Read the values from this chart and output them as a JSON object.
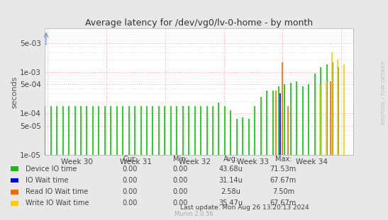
{
  "title": "Average latency for /dev/vg0/lv-0-home - by month",
  "ylabel": "seconds",
  "watermark": "RRDTOOL / TOBI OETIKER",
  "munin_version": "Munin 2.0.56",
  "last_update": "Last update: Mon Aug 26 13:20:13 2024",
  "background_color": "#e8e8e8",
  "plot_bg_color": "#ffffff",
  "grid_color_minor": "#dddddd",
  "grid_color_major": "#ffaaaa",
  "ylim_log_min": 1e-05,
  "ylim_log_max": 0.005,
  "week_labels": [
    "Week 30",
    "Week 31",
    "Week 32",
    "Week 33",
    "Week 34"
  ],
  "legend_items": [
    {
      "label": "Device IO time",
      "color": "#00cc00",
      "cur": "0.00",
      "min": "0.00",
      "avg": "43.68u",
      "max": "71.53m"
    },
    {
      "label": "IO Wait time",
      "color": "#0000ff",
      "cur": "0.00",
      "min": "0.00",
      "avg": "31.14u",
      "max": "67.67m"
    },
    {
      "label": "Read IO Wait time",
      "color": "#ff6600",
      "cur": "0.00",
      "min": "0.00",
      "avg": "2.58u",
      "max": "7.50m"
    },
    {
      "label": "Write IO Wait time",
      "color": "#ffcc00",
      "cur": "0.00",
      "min": "0.00",
      "avg": "35.47u",
      "max": "67.67m"
    }
  ],
  "series_device_io": [
    0.00015,
    0.00015,
    0.00015,
    0.00015,
    0.00015,
    0.00015,
    0.00015,
    0.00015,
    0.00015,
    0.00015,
    0.00015,
    0.00015,
    0.00015,
    0.00015,
    0.00015,
    0.00015,
    0.00015,
    0.00015,
    0.00015,
    0.00015,
    0.00015,
    0.00015,
    0.00015,
    0.00015,
    0.00015,
    0.00015,
    0.00015,
    0.00015,
    0.00015,
    0.00018,
    0.00015,
    0.00012,
    7.5e-05,
    8e-05,
    7.5e-05,
    0.00015,
    0.00025,
    0.00035,
    0.00035,
    0.00045,
    0.0005,
    0.00055,
    0.0006,
    0.00045,
    0.0005,
    0.0009,
    0.0013,
    0.0015,
    0.0017,
    0.0013
  ],
  "series_io_wait": [
    null,
    null,
    null,
    null,
    null,
    null,
    null,
    null,
    null,
    null,
    null,
    null,
    null,
    null,
    null,
    null,
    null,
    null,
    null,
    null,
    null,
    null,
    null,
    null,
    null,
    null,
    null,
    null,
    null,
    null,
    null,
    null,
    null,
    null,
    null,
    null,
    null,
    null,
    null,
    0.0003,
    null,
    null,
    null,
    null,
    null,
    null,
    null,
    null,
    null,
    null
  ],
  "series_read_io_wait": [
    null,
    null,
    null,
    null,
    null,
    null,
    null,
    null,
    null,
    null,
    null,
    null,
    null,
    null,
    null,
    null,
    null,
    null,
    null,
    null,
    null,
    null,
    null,
    null,
    null,
    null,
    null,
    null,
    null,
    null,
    null,
    null,
    null,
    null,
    null,
    null,
    null,
    null,
    0.00035,
    0.0017,
    0.00015,
    null,
    null,
    null,
    null,
    null,
    null,
    0.0006,
    null,
    null
  ],
  "series_write_io_wait": [
    null,
    null,
    null,
    null,
    null,
    null,
    null,
    null,
    null,
    null,
    null,
    null,
    null,
    null,
    null,
    null,
    null,
    null,
    null,
    null,
    null,
    null,
    null,
    null,
    null,
    null,
    null,
    null,
    null,
    null,
    null,
    null,
    null,
    null,
    null,
    null,
    null,
    null,
    null,
    null,
    null,
    null,
    null,
    null,
    null,
    0.0005,
    0.0006,
    0.003,
    0.002,
    0.0015
  ]
}
